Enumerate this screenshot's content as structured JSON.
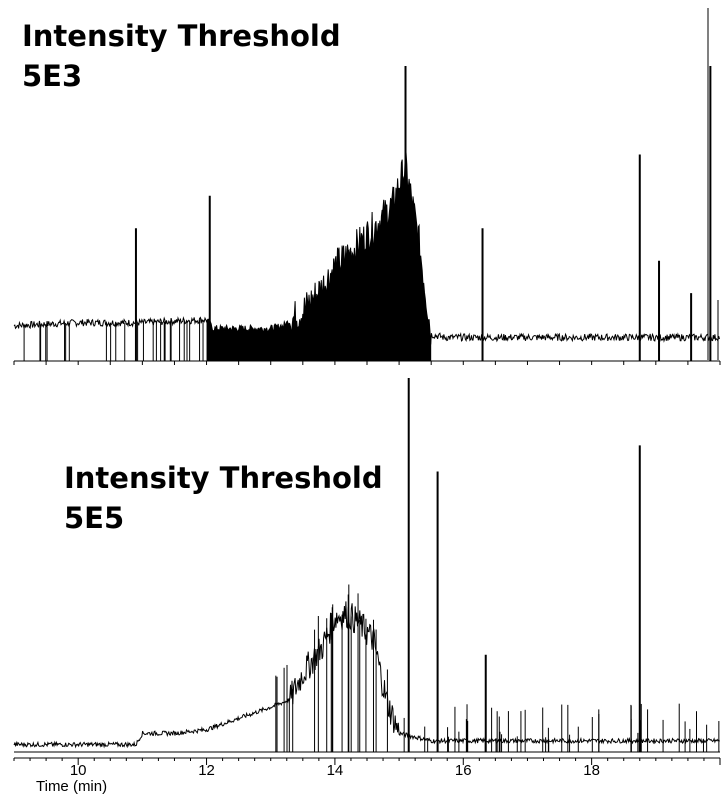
{
  "chart_data": {
    "type": "line",
    "xlabel": "Time (min)",
    "xlim": [
      9.0,
      20.0
    ],
    "xticks": [
      10,
      12,
      14,
      16,
      18
    ],
    "grid": false,
    "panels": [
      {
        "annotation": [
          "Intensity Threshold",
          "5E3"
        ],
        "ylim": [
          0,
          100
        ],
        "series": [
          {
            "x": [
              9.0,
              10.0,
              11.0,
              12.0,
              12.1,
              13.0,
              13.2,
              13.5,
              13.8,
              14.0,
              14.3,
              14.6,
              14.9,
              15.0,
              15.1,
              15.3,
              15.5,
              15.7,
              16.0,
              17.0,
              18.0,
              18.7,
              19.0,
              19.5,
              20.0
            ],
            "y": [
              12,
              13,
              13,
              14,
              11,
              11,
              12,
              17,
              25,
              32,
              38,
              45,
              53,
              60,
              66,
              42,
              9,
              8,
              8,
              8,
              8,
              8,
              8,
              8,
              8
            ]
          }
        ],
        "peaks": [
          {
            "x": 10.9,
            "y": 45
          },
          {
            "x": 12.05,
            "y": 56
          },
          {
            "x": 15.1,
            "y": 100
          },
          {
            "x": 16.3,
            "y": 45
          },
          {
            "x": 18.75,
            "y": 70
          },
          {
            "x": 19.05,
            "y": 34
          },
          {
            "x": 19.55,
            "y": 23
          },
          {
            "x": 19.85,
            "y": 100
          }
        ]
      },
      {
        "annotation": [
          "Intensity Threshold",
          "5E5"
        ],
        "ylim": [
          0,
          100
        ],
        "series": [
          {
            "x": [
              9.0,
              10.0,
              10.9,
              11.0,
              11.5,
              12.0,
              12.5,
              13.0,
              13.3,
              13.5,
              13.8,
              14.0,
              14.2,
              14.4,
              14.6,
              14.8,
              15.0,
              15.5,
              16.0,
              17.0,
              18.0,
              19.0,
              20.0
            ],
            "y": [
              2,
              2,
              2,
              5,
              5,
              6,
              9,
              12,
              14,
              21,
              28,
              36,
              37,
              34,
              30,
              14,
              5,
              3,
              3,
              3,
              3,
              3,
              3
            ]
          }
        ],
        "peaks": [
          {
            "x": 15.15,
            "y": 100
          },
          {
            "x": 15.6,
            "y": 75
          },
          {
            "x": 16.35,
            "y": 26
          },
          {
            "x": 18.75,
            "y": 82
          }
        ]
      }
    ]
  }
}
